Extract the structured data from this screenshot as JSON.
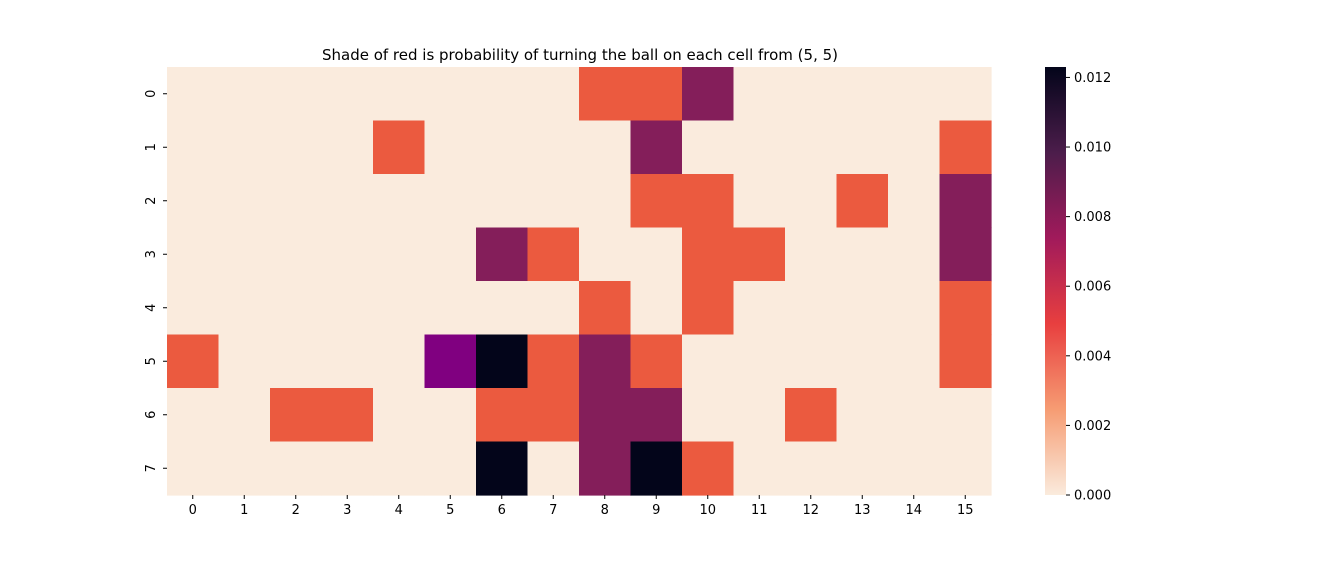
{
  "chart_data": {
    "type": "heatmap",
    "title": "Shade of red is probability of turning the ball on each cell from (5, 5)",
    "x_ticks": [
      "0",
      "1",
      "2",
      "3",
      "4",
      "5",
      "6",
      "7",
      "8",
      "9",
      "10",
      "11",
      "12",
      "13",
      "14",
      "15"
    ],
    "y_ticks": [
      "0",
      "1",
      "2",
      "3",
      "4",
      "5",
      "6",
      "7"
    ],
    "values": [
      [
        0,
        0,
        0,
        0,
        0,
        0,
        0,
        0,
        0.004,
        0.004,
        0.008,
        0,
        0,
        0,
        0,
        0
      ],
      [
        0,
        0,
        0,
        0,
        0.004,
        0,
        0,
        0,
        0,
        0.008,
        0,
        0,
        0,
        0,
        0,
        0.004
      ],
      [
        0,
        0,
        0,
        0,
        0,
        0,
        0,
        0,
        0,
        0.004,
        0.004,
        0,
        0,
        0.004,
        0,
        0.008
      ],
      [
        0,
        0,
        0,
        0,
        0,
        0,
        0.008,
        0.004,
        0,
        0,
        0.004,
        0.004,
        0,
        0,
        0,
        0.008
      ],
      [
        0,
        0,
        0,
        0,
        0,
        0,
        0,
        0,
        0.004,
        0,
        0.004,
        0,
        0,
        0,
        0,
        0.004
      ],
      [
        0.004,
        0,
        0,
        0,
        0,
        0.0082,
        0.0123,
        0.004,
        0.008,
        0.004,
        0,
        0,
        0,
        0,
        0,
        0.004
      ],
      [
        0,
        0,
        0.004,
        0.004,
        0,
        0,
        0.004,
        0.004,
        0.008,
        0.008,
        0,
        0,
        0.004,
        0,
        0,
        0
      ],
      [
        0,
        0,
        0,
        0,
        0,
        0,
        0.0123,
        0,
        0.008,
        0.0123,
        0.004,
        0,
        0,
        0,
        0,
        0
      ]
    ],
    "cell_colors": [
      [
        "#faebdd",
        "#faebdd",
        "#faebdd",
        "#faebdd",
        "#faebdd",
        "#faebdd",
        "#faebdd",
        "#faebdd",
        "#eb5a3f",
        "#eb5a3f",
        "#841e5a",
        "#faebdd",
        "#faebdd",
        "#faebdd",
        "#faebdd",
        "#faebdd"
      ],
      [
        "#faebdd",
        "#faebdd",
        "#faebdd",
        "#faebdd",
        "#eb5a3f",
        "#faebdd",
        "#faebdd",
        "#faebdd",
        "#faebdd",
        "#841e5a",
        "#faebdd",
        "#faebdd",
        "#faebdd",
        "#faebdd",
        "#faebdd",
        "#eb5a3f"
      ],
      [
        "#faebdd",
        "#faebdd",
        "#faebdd",
        "#faebdd",
        "#faebdd",
        "#faebdd",
        "#faebdd",
        "#faebdd",
        "#faebdd",
        "#eb5a3f",
        "#eb5a3f",
        "#faebdd",
        "#faebdd",
        "#eb5a3f",
        "#faebdd",
        "#841e5a"
      ],
      [
        "#faebdd",
        "#faebdd",
        "#faebdd",
        "#faebdd",
        "#faebdd",
        "#faebdd",
        "#841e5a",
        "#eb5a3f",
        "#faebdd",
        "#faebdd",
        "#eb5a3f",
        "#eb5a3f",
        "#faebdd",
        "#faebdd",
        "#faebdd",
        "#841e5a"
      ],
      [
        "#faebdd",
        "#faebdd",
        "#faebdd",
        "#faebdd",
        "#faebdd",
        "#faebdd",
        "#faebdd",
        "#faebdd",
        "#eb5a3f",
        "#faebdd",
        "#eb5a3f",
        "#faebdd",
        "#faebdd",
        "#faebdd",
        "#faebdd",
        "#eb5a3f"
      ],
      [
        "#eb5a3f",
        "#faebdd",
        "#faebdd",
        "#faebdd",
        "#faebdd",
        "#800080",
        "#03051a",
        "#eb5a3f",
        "#841e5a",
        "#eb5a3f",
        "#faebdd",
        "#faebdd",
        "#faebdd",
        "#faebdd",
        "#faebdd",
        "#eb5a3f"
      ],
      [
        "#faebdd",
        "#faebdd",
        "#eb5a3f",
        "#eb5a3f",
        "#faebdd",
        "#faebdd",
        "#eb5a3f",
        "#eb5a3f",
        "#841e5a",
        "#841e5a",
        "#faebdd",
        "#faebdd",
        "#eb5a3f",
        "#faebdd",
        "#faebdd",
        "#faebdd"
      ],
      [
        "#faebdd",
        "#faebdd",
        "#faebdd",
        "#faebdd",
        "#faebdd",
        "#faebdd",
        "#03051a",
        "#faebdd",
        "#841e5a",
        "#03051a",
        "#eb5a3f",
        "#faebdd",
        "#faebdd",
        "#faebdd",
        "#faebdd",
        "#faebdd"
      ]
    ],
    "colorbar": {
      "ticks": [
        "0.000",
        "0.002",
        "0.004",
        "0.006",
        "0.008",
        "0.010",
        "0.012"
      ],
      "tick_values": [
        0,
        0.002,
        0.004,
        0.006,
        0.008,
        0.01,
        0.012
      ],
      "vmin": 0,
      "vmax": 0.0123,
      "colormap": "rocket",
      "colormap_stops": [
        "#03051a",
        "#4c1d4b",
        "#a11a5b",
        "#e83f3f",
        "#f69c73",
        "#faebdd"
      ]
    },
    "grid": false
  }
}
